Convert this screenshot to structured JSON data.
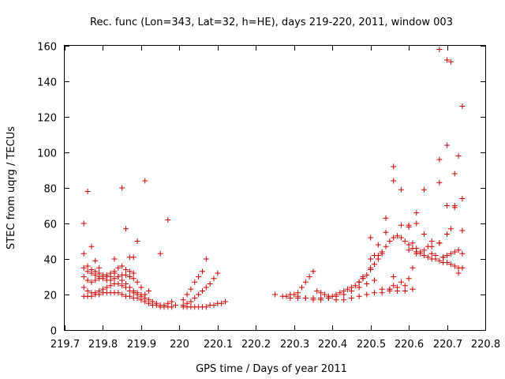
{
  "chart_data": {
    "type": "scatter",
    "title": "Rec. func (Lon=343, Lat=32, h=HE), days 219-220, 2011, window 003",
    "xlabel": "GPS time / Days of year 2011",
    "ylabel": "STEC from uqrg / TECUs",
    "xlim": [
      219.7,
      220.8
    ],
    "ylim": [
      0,
      160
    ],
    "xticks": [
      219.7,
      219.8,
      219.9,
      220.0,
      220.1,
      220.2,
      220.3,
      220.4,
      220.5,
      220.6,
      220.7,
      220.8
    ],
    "xtick_labels": [
      "219.7",
      "219.8",
      "219.9",
      "220",
      "220.1",
      "220.2",
      "220.3",
      "220.4",
      "220.5",
      "220.6",
      "220.7",
      "220.8"
    ],
    "yticks": [
      0,
      20,
      40,
      60,
      80,
      100,
      120,
      140,
      160
    ],
    "ytick_labels": [
      "0",
      "20",
      "40",
      "60",
      "80",
      "100",
      "120",
      "140",
      "160"
    ],
    "grid": false,
    "marker": "plus",
    "color": "#cc0000",
    "series": [
      {
        "x": [
          219.75,
          219.76,
          219.77,
          219.78,
          219.79,
          219.8,
          219.81,
          219.82,
          219.83,
          219.84,
          219.85,
          219.86,
          219.87,
          219.88,
          219.89,
          219.9,
          219.91,
          219.92,
          219.93,
          219.94,
          219.95,
          219.96,
          219.97,
          219.98,
          219.99,
          219.75,
          219.76,
          219.77,
          219.78,
          219.79,
          219.8,
          219.81,
          219.82,
          219.83,
          219.84,
          219.85,
          219.86,
          219.87,
          219.88,
          219.89,
          219.9,
          219.91,
          219.92,
          219.93,
          219.94,
          219.95,
          219.96,
          219.97,
          219.98,
          219.75,
          219.76,
          219.77,
          219.78,
          219.79,
          219.8,
          219.81,
          219.82,
          219.83,
          219.84,
          219.85,
          219.86,
          219.87,
          219.88,
          219.89,
          219.9,
          219.91,
          219.92,
          219.75,
          219.76,
          219.77,
          219.78,
          219.79,
          219.8,
          219.81,
          219.82,
          219.83,
          219.84,
          219.85,
          219.86,
          219.87,
          219.88,
          219.89,
          219.9,
          219.75,
          219.76,
          219.77,
          219.78,
          219.79,
          219.8,
          219.81,
          219.82,
          219.83,
          219.84,
          219.85,
          219.86,
          219.87,
          219.88,
          219.75,
          219.76,
          219.77,
          219.78,
          219.79,
          219.83,
          219.85,
          219.86,
          219.87,
          219.88,
          219.89,
          219.91,
          219.95,
          219.97,
          220.01,
          220.02,
          220.03,
          220.04,
          220.05,
          220.06,
          220.07,
          220.08,
          220.09,
          220.1,
          220.11,
          220.12,
          220.01,
          220.02,
          220.03,
          220.04,
          220.05,
          220.06,
          220.07,
          220.08,
          220.09,
          220.1,
          220.01,
          220.02,
          220.03,
          220.04,
          220.05,
          220.06,
          220.07,
          220.25,
          220.27,
          220.29,
          220.31,
          220.33,
          220.35,
          220.37,
          220.39,
          220.41,
          220.43,
          220.45,
          220.47,
          220.49,
          220.51,
          220.53,
          220.55,
          220.57,
          220.59,
          220.61,
          220.3,
          220.31,
          220.32,
          220.33,
          220.34,
          220.35,
          220.36,
          220.37,
          220.38,
          220.39,
          220.4,
          220.41,
          220.42,
          220.43,
          220.44,
          220.45,
          220.46,
          220.47,
          220.48,
          220.28,
          220.29,
          220.31,
          220.33,
          220.35,
          220.37,
          220.39,
          220.41,
          220.43,
          220.45,
          220.47,
          220.49,
          220.51,
          220.53,
          220.55,
          220.57,
          220.59,
          220.47,
          220.48,
          220.49,
          220.5,
          220.51,
          220.52,
          220.53,
          220.54,
          220.55,
          220.56,
          220.57,
          220.58,
          220.59,
          220.6,
          220.61,
          220.62,
          220.63,
          220.64,
          220.65,
          220.66,
          220.67,
          220.68,
          220.69,
          220.7,
          220.71,
          220.72,
          220.73,
          220.74,
          220.48,
          220.5,
          220.52,
          220.54,
          220.56,
          220.58,
          220.6,
          220.62,
          220.64,
          220.66,
          220.68,
          220.7,
          220.72,
          220.74,
          220.5,
          220.52,
          220.54,
          220.56,
          220.58,
          220.6,
          220.62,
          220.64,
          220.66,
          220.68,
          220.7,
          220.72,
          220.74,
          220.5,
          220.51,
          220.53,
          220.56,
          220.58,
          220.6,
          220.61,
          220.62,
          220.63,
          220.65,
          220.67,
          220.68,
          220.69,
          220.7,
          220.71,
          220.72,
          220.73,
          220.74,
          220.55,
          220.56,
          220.6,
          220.61,
          220.62,
          220.64,
          220.66,
          220.68,
          220.69,
          220.7,
          220.71,
          220.72,
          220.73,
          220.74,
          220.68,
          220.7,
          220.71,
          220.73
        ],
        "y": [
          19,
          19,
          19,
          20,
          20,
          21,
          21,
          21,
          21,
          21,
          20,
          19,
          19,
          18,
          18,
          17,
          16,
          15,
          14,
          14,
          13,
          13,
          13,
          13,
          14,
          24,
          22,
          21,
          21,
          22,
          23,
          24,
          25,
          26,
          26,
          25,
          24,
          22,
          21,
          20,
          19,
          18,
          17,
          16,
          15,
          14,
          14,
          15,
          16,
          30,
          28,
          27,
          28,
          29,
          30,
          31,
          32,
          32,
          30,
          28,
          26,
          24,
          22,
          21,
          20,
          20,
          22,
          35,
          33,
          32,
          31,
          30,
          29,
          28,
          28,
          29,
          30,
          31,
          31,
          30,
          29,
          27,
          24,
          43,
          36,
          34,
          33,
          32,
          31,
          30,
          30,
          33,
          35,
          36,
          34,
          33,
          32,
          60,
          78,
          47,
          39,
          35,
          40,
          80,
          57,
          41,
          41,
          50,
          84,
          43,
          62,
          13,
          13,
          13,
          13,
          13,
          13,
          13,
          14,
          14,
          15,
          15,
          16,
          14,
          15,
          16,
          18,
          20,
          22,
          24,
          26,
          29,
          32,
          17,
          20,
          23,
          27,
          30,
          33,
          40,
          20,
          19,
          18,
          18,
          18,
          18,
          18,
          18,
          17,
          17,
          18,
          19,
          20,
          21,
          21,
          22,
          22,
          22,
          23,
          20,
          21,
          24,
          27,
          30,
          33,
          22,
          21,
          20,
          19,
          19,
          20,
          21,
          22,
          23,
          24,
          25,
          27,
          29,
          19,
          20,
          19,
          18,
          17,
          17,
          18,
          19,
          20,
          22,
          24,
          26,
          28,
          23,
          23,
          24,
          25,
          27,
          29,
          31,
          34,
          37,
          40,
          43,
          47,
          50,
          52,
          53,
          52,
          50,
          48,
          46,
          44,
          43,
          42,
          41,
          40,
          40,
          39,
          38,
          38,
          37,
          36,
          35,
          35,
          30,
          35,
          48,
          63,
          92,
          59,
          59,
          66,
          54,
          50,
          83,
          70,
          69,
          74,
          40,
          42,
          55,
          84,
          79,
          58,
          60,
          79,
          43,
          96,
          104,
          88,
          56,
          52,
          42,
          44,
          30,
          27,
          29,
          35,
          46,
          44,
          47,
          42,
          49,
          41,
          42,
          43,
          44,
          45,
          43,
          23,
          25,
          45,
          49,
          43,
          45,
          47,
          49,
          41,
          152,
          151,
          70,
          98,
          126,
          158,
          54,
          57,
          32
        ],
        "_marker_note": "single scatter series"
      }
    ]
  }
}
